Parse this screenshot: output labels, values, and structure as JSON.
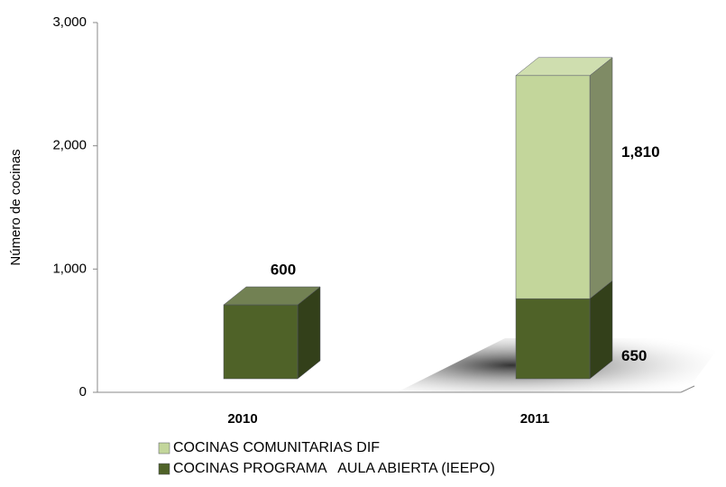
{
  "chart_data": {
    "type": "bar3d_stacked",
    "y_label": "Número de cocinas",
    "categories": [
      "2010",
      "2011"
    ],
    "series": [
      {
        "name": "COCINAS COMUNITARIAS DIF",
        "color": "#c3d69b",
        "values": [
          null,
          1810
        ],
        "value_labels": [
          null,
          "1,810"
        ]
      },
      {
        "name": "COCINAS PROGRAMA   AULA ABIERTA (IEEPO)",
        "color": "#4f6228",
        "values": [
          600,
          650
        ],
        "value_labels": [
          "600",
          "650"
        ]
      }
    ],
    "ylim": [
      0,
      3000
    ],
    "yticks": [
      0,
      {
        "value": 1000,
        "label": "1,000"
      },
      {
        "value": 2000,
        "label": "2,000"
      },
      {
        "value": 3000,
        "label": "3,000"
      }
    ]
  }
}
